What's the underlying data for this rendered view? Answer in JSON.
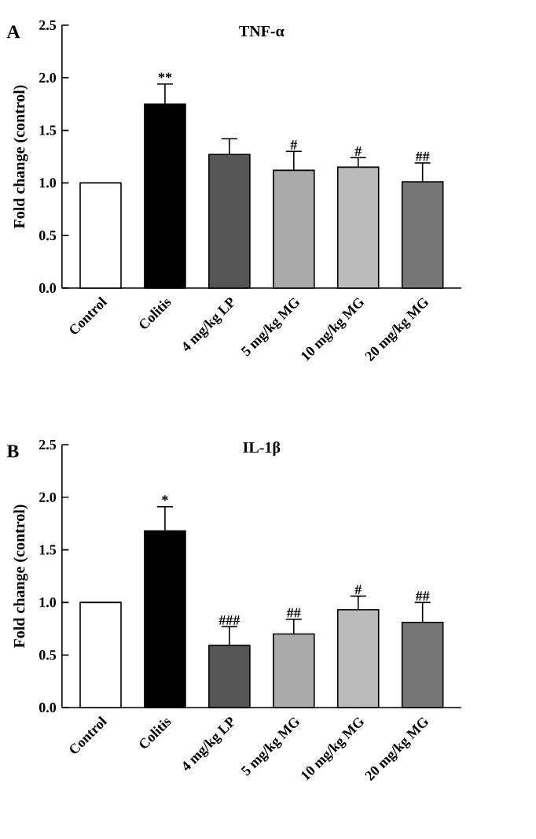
{
  "chart_data": [
    {
      "type": "bar",
      "title": "TNF-α",
      "ylabel": "Fold change (control)",
      "categories": [
        "Control",
        "Colitis",
        "4 mg/kg LP",
        "5 mg/kg MG",
        "10 mg/kg MG",
        "20 mg/kg MG"
      ],
      "values": [
        1.0,
        1.75,
        1.27,
        1.12,
        1.15,
        1.01
      ],
      "errors": [
        null,
        0.19,
        0.15,
        0.18,
        0.09,
        0.18
      ],
      "colors": [
        "#ffffff",
        "#000000",
        "#555555",
        "#aaaaaa",
        "#bbbbbb",
        "#777777"
      ],
      "ylim": [
        0,
        2.5
      ],
      "yticks": [
        {
          "value": 0,
          "label": "0.0"
        },
        0.5,
        {
          "value": 1,
          "label": "1.0"
        },
        1.5,
        {
          "value": 2,
          "label": "2.0"
        },
        2.5
      ],
      "annotations": [
        "A",
        {
          "text": "**",
          "x": "Colitis",
          "y": 1.94
        },
        {
          "text": "#",
          "x": "5 mg/kg MG",
          "y": 1.3
        },
        {
          "text": "#",
          "x": "10 mg/kg MG",
          "y": 1.24
        },
        {
          "text": "##",
          "x": "20 mg/kg MG",
          "y": 1.19
        }
      ]
    },
    {
      "type": "bar",
      "title": "IL-1β",
      "ylabel": "Fold change (control)",
      "categories": [
        "Control",
        "Colitis",
        "4 mg/kg LP",
        "5 mg/kg MG",
        "10 mg/kg MG",
        "20 mg/kg MG"
      ],
      "values": [
        1.0,
        1.68,
        0.59,
        0.7,
        0.93,
        0.81
      ],
      "errors": [
        null,
        0.23,
        0.18,
        0.14,
        0.13,
        0.19
      ],
      "colors": [
        "#ffffff",
        "#000000",
        "#555555",
        "#aaaaaa",
        "#bbbbbb",
        "#777777"
      ],
      "ylim": [
        0,
        2.5
      ],
      "yticks": [
        {
          "value": 0,
          "label": "0.0"
        },
        0.5,
        {
          "value": 1,
          "label": "1.0"
        },
        1.5,
        {
          "value": 2,
          "label": "2.0"
        },
        2.5
      ],
      "annotations": [
        "B",
        {
          "text": "*",
          "x": "Colitis",
          "y": 1.91
        },
        {
          "text": "###",
          "x": "4 mg/kg LP",
          "y": 0.77
        },
        {
          "text": "##",
          "x": "5 mg/kg MG",
          "y": 0.84
        },
        {
          "text": "#",
          "x": "10 mg/kg MG",
          "y": 1.06
        },
        {
          "text": "##",
          "x": "20 mg/kg MG",
          "y": 1.0
        }
      ]
    }
  ]
}
